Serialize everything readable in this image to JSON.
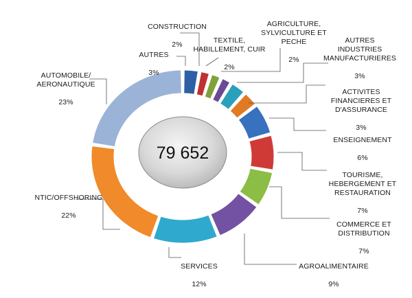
{
  "chart_data": {
    "type": "pie",
    "style": "donut",
    "center_value": "79 652",
    "slices": [
      {
        "name": "AUTRES",
        "percent_label": "3%",
        "value": 3,
        "color": "#2e5fa5"
      },
      {
        "name": "CONSTRUCTION",
        "percent_label": "2%",
        "value": 2,
        "color": "#c0312f"
      },
      {
        "name": "TEXTILE,\nHABILLEMENT, CUIR",
        "percent_label": "2%",
        "value": 2,
        "color": "#7ea13a"
      },
      {
        "name": "AGRICULTURE,\nSYLVICULTURE ET\nPECHE",
        "percent_label": "2%",
        "value": 2,
        "color": "#6a4a94"
      },
      {
        "name": "AUTRES\nINDUSTRIES\nMANUFACTURIERES",
        "percent_label": "3%",
        "value": 3,
        "color": "#2aa0bb"
      },
      {
        "name": "ACTIVITES\nFINANCIERES ET\nD'ASSURANCE",
        "percent_label": "3%",
        "value": 3,
        "color": "#e17a23"
      },
      {
        "name": "ENSEIGNEMENT",
        "percent_label": "6%",
        "value": 6,
        "color": "#3871bd"
      },
      {
        "name": "TOURISME,\nHEBERGEMENT ET\nRESTAURATION",
        "percent_label": "7%",
        "value": 7,
        "color": "#cf3a37"
      },
      {
        "name": "COMMERCE ET\nDISTRIBUTION",
        "percent_label": "7%",
        "value": 7,
        "color": "#8cbd44"
      },
      {
        "name": "AGROALIMENTAIRE",
        "percent_label": "9%",
        "value": 9,
        "color": "#7351a3"
      },
      {
        "name": "SERVICES",
        "percent_label": "12%",
        "value": 12,
        "color": "#2fa9cd"
      },
      {
        "name": "NTIC/OFFSHORING",
        "percent_label": "22%",
        "value": 22,
        "color": "#f08a2a"
      },
      {
        "name": "AUTOMOBILE/\nAERONAUTIQUE",
        "percent_label": "23%",
        "value": 23,
        "color": "#9bb3d6"
      }
    ]
  }
}
